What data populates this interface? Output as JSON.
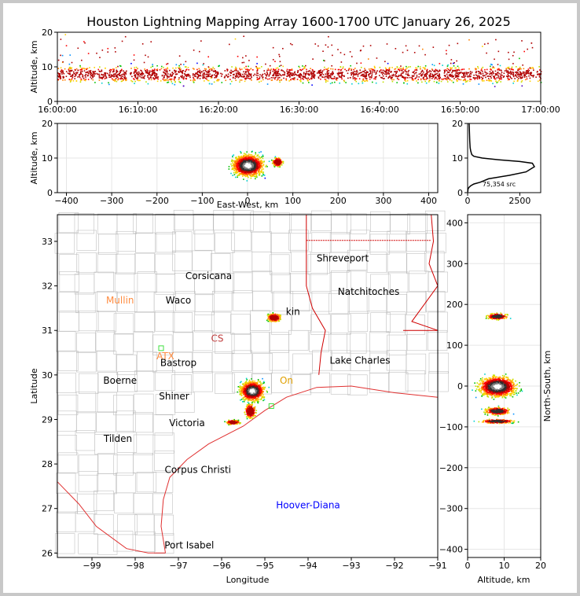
{
  "title": "Houston Lightning Mapping Array 1600-1700 UTC January 26, 2025",
  "colors": {
    "frame": "#c8c8c8",
    "state_border": "#d00000",
    "county": "#c0c0c0",
    "coast": "#e03030"
  },
  "chart_data": [
    {
      "id": "time_altitude",
      "type": "scatter",
      "ylabel": "Altitude, km",
      "xlabel": "",
      "xlim": [
        "16:00:00",
        "17:00:00"
      ],
      "ylim": [
        0,
        20
      ],
      "x_ticks": [
        "16:00:00",
        "16:10:00",
        "16:20:00",
        "16:30:00",
        "16:40:00",
        "16:50:00",
        "17:00:00"
      ],
      "y_ticks": [
        "0",
        "10",
        "20"
      ],
      "core_altitude_km": 8
    },
    {
      "id": "ew_altitude",
      "type": "scatter",
      "xlabel": "East-West, km",
      "ylabel": "Altitude, km",
      "xlim": [
        -420,
        420
      ],
      "ylim": [
        0,
        20
      ],
      "x_ticks": [
        "−400",
        "−300",
        "−200",
        "−100",
        "0",
        "100",
        "200",
        "300",
        "400"
      ],
      "y_ticks": [
        "0",
        "10",
        "20"
      ],
      "clusters": [
        {
          "x_km": 0,
          "alt_km": 8,
          "spread_x_km": 55,
          "spread_alt_km": 5
        },
        {
          "x_km": 65,
          "alt_km": 9,
          "spread_x_km": 18,
          "spread_alt_km": 2
        }
      ]
    },
    {
      "id": "altitude_histogram",
      "type": "line",
      "xlim": [
        0,
        3500
      ],
      "ylim": [
        0,
        20
      ],
      "x_ticks": [
        "0",
        "2500"
      ],
      "y_ticks": [
        "0",
        "10",
        "20"
      ],
      "annotation": "75,354 src",
      "x": [
        5,
        10,
        20,
        60,
        150,
        300,
        600,
        1000,
        2000,
        2800,
        3200,
        3100,
        2500,
        1500,
        700,
        300,
        200,
        150,
        120,
        100,
        90,
        80,
        70
      ],
      "y": [
        0.2,
        0.5,
        1.0,
        1.5,
        2.0,
        2.5,
        3.0,
        4.0,
        5.0,
        6.0,
        7.5,
        8.5,
        9.0,
        9.5,
        10.0,
        10.5,
        11.0,
        12.0,
        13.0,
        15.0,
        17.0,
        19.0,
        20.0
      ]
    },
    {
      "id": "map",
      "type": "scatter",
      "xlabel": "Longitude",
      "ylabel": "Latitude",
      "xlim": [
        -99.8,
        -91.0
      ],
      "ylim": [
        25.9,
        33.6
      ],
      "x_ticks": [
        "−99",
        "−98",
        "−97",
        "−96",
        "−95",
        "−94",
        "−93",
        "−92",
        "−91"
      ],
      "y_ticks": [
        "26",
        "27",
        "28",
        "29",
        "30",
        "31",
        "32",
        "33"
      ],
      "clusters": [
        {
          "lon": -95.3,
          "lat": 29.65,
          "spread_lon": 0.45,
          "spread_lat": 0.35
        },
        {
          "lon": -95.35,
          "lat": 29.2,
          "spread_lon": 0.2,
          "spread_lat": 0.25
        },
        {
          "lon": -95.75,
          "lat": 28.95,
          "spread_lon": 0.25,
          "spread_lat": 0.08
        },
        {
          "lon": -94.8,
          "lat": 31.3,
          "spread_lon": 0.25,
          "spread_lat": 0.15
        }
      ]
    },
    {
      "id": "altitude_ns",
      "type": "scatter",
      "xlabel": "Altitude, km",
      "ylabel": "North-South, km",
      "xlim": [
        0,
        20
      ],
      "ylim": [
        -420,
        420
      ],
      "x_ticks": [
        "0",
        "10",
        "20"
      ],
      "y_ticks": [
        "−400",
        "−300",
        "−200",
        "−100",
        "0",
        "100",
        "200",
        "300",
        "400"
      ],
      "clusters": [
        {
          "alt_km": 8,
          "ns_km": 0,
          "spread_alt_km": 9,
          "spread_ns_km": 40
        },
        {
          "alt_km": 8,
          "ns_km": -60,
          "spread_alt_km": 6,
          "spread_ns_km": 15
        },
        {
          "alt_km": 8,
          "ns_km": -85,
          "spread_alt_km": 8,
          "spread_ns_km": 8
        },
        {
          "alt_km": 8,
          "ns_km": 172,
          "spread_alt_km": 5,
          "spread_ns_km": 12
        }
      ]
    }
  ],
  "map_labels": [
    {
      "text": "Shreveport",
      "lon": -93.2,
      "lat": 32.55,
      "color": "#000000"
    },
    {
      "text": "Corsicana",
      "lon": -96.3,
      "lat": 32.15,
      "color": "#000000"
    },
    {
      "text": "Natchitoches",
      "lon": -92.6,
      "lat": 31.8,
      "color": "#000000"
    },
    {
      "text": "Mullin",
      "lon": -98.35,
      "lat": 31.6,
      "color": "#ff8c40"
    },
    {
      "text": "Waco",
      "lon": -97.0,
      "lat": 31.6,
      "color": "#000000"
    },
    {
      "text": "kin",
      "lon": -94.35,
      "lat": 31.35,
      "color": "#000000"
    },
    {
      "text": "CS",
      "lon": -96.1,
      "lat": 30.75,
      "color": "#c04040"
    },
    {
      "text": "ATX",
      "lon": -97.3,
      "lat": 30.35,
      "color": "#ff8c40"
    },
    {
      "text": "Bastrop",
      "lon": -97.0,
      "lat": 30.2,
      "color": "#000000"
    },
    {
      "text": "Lake Charles",
      "lon": -92.8,
      "lat": 30.25,
      "color": "#000000"
    },
    {
      "text": "Boerne",
      "lon": -98.35,
      "lat": 29.8,
      "color": "#000000"
    },
    {
      "text": "On",
      "lon": -94.5,
      "lat": 29.8,
      "color": "#e0a000"
    },
    {
      "text": "Shiner",
      "lon": -97.1,
      "lat": 29.45,
      "color": "#000000"
    },
    {
      "text": "Victoria",
      "lon": -96.8,
      "lat": 28.85,
      "color": "#000000"
    },
    {
      "text": "Tilden",
      "lon": -98.4,
      "lat": 28.5,
      "color": "#000000"
    },
    {
      "text": "Corpus Christi",
      "lon": -96.55,
      "lat": 27.8,
      "color": "#000000"
    },
    {
      "text": "Hoover-Diana",
      "lon": -94.0,
      "lat": 27.0,
      "color": "#0000ff"
    },
    {
      "text": "Port Isabel",
      "lon": -96.75,
      "lat": 26.1,
      "color": "#000000"
    }
  ],
  "stations": [
    {
      "lon": -97.4,
      "lat": 30.6,
      "color": "#40e040"
    },
    {
      "lon": -94.85,
      "lat": 29.3,
      "color": "#40e040"
    }
  ]
}
